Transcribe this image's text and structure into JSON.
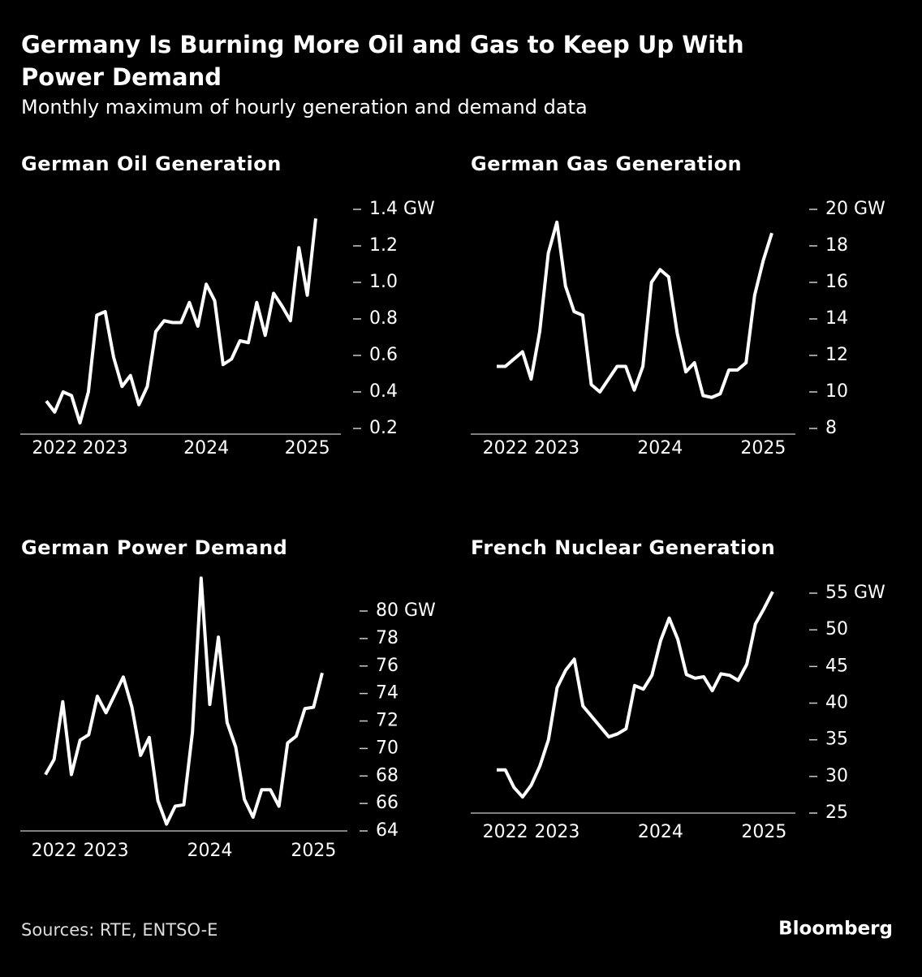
{
  "title_lines": [
    "Germany Is Burning More Oil and Gas to Keep Up With",
    "Power Demand"
  ],
  "subtitle": "Monthly maximum of hourly generation and demand data",
  "source": "Sources: RTE, ENTSO-E",
  "brand": "Bloomberg",
  "chart_data": [
    {
      "type": "line",
      "title": "German Oil Generation",
      "color": "#ffffff",
      "categories": [
        null,
        "2022",
        null,
        null,
        null,
        null,
        null,
        "2023",
        null,
        null,
        null,
        null,
        null,
        null,
        null,
        null,
        null,
        null,
        null,
        "2024",
        null,
        null,
        null,
        null,
        null,
        null,
        null,
        null,
        null,
        null,
        null,
        "2025",
        null
      ],
      "values": [
        0.35,
        0.29,
        0.4,
        0.38,
        0.23,
        0.4,
        0.82,
        0.84,
        0.59,
        0.43,
        0.49,
        0.33,
        0.43,
        0.73,
        0.79,
        0.78,
        0.78,
        0.89,
        0.76,
        0.99,
        0.9,
        0.55,
        0.58,
        0.68,
        0.67,
        0.89,
        0.71,
        0.94,
        0.87,
        0.79,
        1.19,
        0.93,
        1.35
      ],
      "ylim": [
        0.2,
        1.4
      ],
      "yticks": [
        {
          "value": 1.4,
          "label": "1.4 GW"
        },
        1.2,
        {
          "value": 1.0,
          "label": "1.0"
        },
        0.8,
        0.6,
        0.4,
        0.2
      ]
    },
    {
      "type": "line",
      "title": "German Gas Generation",
      "color": "#ffffff",
      "categories": [
        null,
        "2022",
        null,
        null,
        null,
        null,
        null,
        "2023",
        null,
        null,
        null,
        null,
        null,
        null,
        null,
        null,
        null,
        null,
        null,
        "2024",
        null,
        null,
        null,
        null,
        null,
        null,
        null,
        null,
        null,
        null,
        null,
        "2025",
        null
      ],
      "values": [
        11.4,
        11.4,
        11.8,
        12.2,
        10.7,
        13.3,
        17.6,
        19.3,
        15.8,
        14.4,
        14.2,
        10.4,
        10.0,
        10.7,
        11.4,
        11.4,
        10.1,
        11.4,
        16.0,
        16.7,
        16.3,
        13.2,
        11.1,
        11.6,
        9.8,
        9.7,
        9.9,
        11.2,
        11.2,
        11.6,
        15.3,
        17.2,
        18.7
      ],
      "ylim": [
        8,
        20
      ],
      "yticks": [
        {
          "value": 20,
          "label": "20 GW"
        },
        18,
        16,
        14,
        12,
        10,
        8
      ]
    },
    {
      "type": "line",
      "title": "German Power Demand",
      "color": "#ffffff",
      "categories": [
        null,
        "2022",
        null,
        null,
        null,
        null,
        null,
        "2023",
        null,
        null,
        null,
        null,
        null,
        null,
        null,
        null,
        null,
        null,
        null,
        "2024",
        null,
        null,
        null,
        null,
        null,
        null,
        null,
        null,
        null,
        null,
        null,
        "2025",
        null
      ],
      "values": [
        68.1,
        69.2,
        73.4,
        68.1,
        70.6,
        71.0,
        73.8,
        72.6,
        73.9,
        75.2,
        73.0,
        69.5,
        70.8,
        66.2,
        64.5,
        65.8,
        65.9,
        71.2,
        82.4,
        73.2,
        78.1,
        71.9,
        70.1,
        66.3,
        65.0,
        67.0,
        67.0,
        65.8,
        70.4,
        70.9,
        72.9,
        73.0,
        75.5
      ],
      "ylim": [
        64,
        83
      ],
      "yticks": [
        {
          "value": 80,
          "label": "80 GW"
        },
        78,
        76,
        74,
        72,
        70,
        68,
        66,
        64
      ]
    },
    {
      "type": "line",
      "title": "French Nuclear Generation",
      "color": "#ffffff",
      "categories": [
        null,
        "2022",
        null,
        null,
        null,
        null,
        null,
        "2023",
        null,
        null,
        null,
        null,
        null,
        null,
        null,
        null,
        null,
        null,
        null,
        "2024",
        null,
        null,
        null,
        null,
        null,
        null,
        null,
        null,
        null,
        null,
        null,
        "2025",
        null
      ],
      "values": [
        30.9,
        30.9,
        28.5,
        27.2,
        28.8,
        31.4,
        35.0,
        42.1,
        44.5,
        46.0,
        39.6,
        38.2,
        36.8,
        35.4,
        35.8,
        36.5,
        42.4,
        41.9,
        43.8,
        48.5,
        51.6,
        48.7,
        43.9,
        43.4,
        43.6,
        41.7,
        44.0,
        43.8,
        43.1,
        45.3,
        50.8,
        52.9,
        55.2
      ],
      "ylim": [
        25,
        56
      ],
      "yticks": [
        {
          "value": 55,
          "label": "55 GW"
        },
        50,
        45,
        40,
        35,
        30,
        25
      ]
    }
  ]
}
